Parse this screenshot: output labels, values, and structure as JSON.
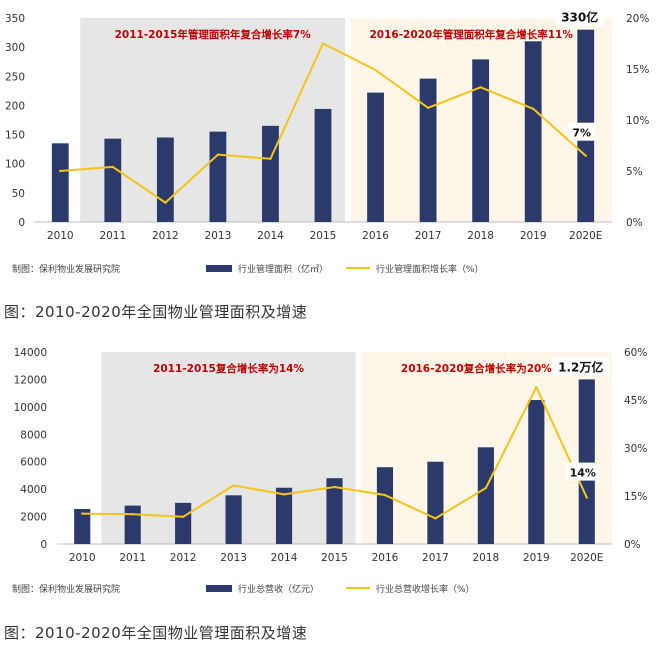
{
  "chart_data": [
    {
      "type": "bar",
      "categories": [
        "2010",
        "2011",
        "2012",
        "2013",
        "2014",
        "2015",
        "2016",
        "2017",
        "2018",
        "2019",
        "2020E"
      ],
      "series": [
        {
          "name": "行业管理面积（亿㎡）",
          "axis": "left",
          "type": "bar",
          "values": [
            135,
            143,
            145,
            155,
            165,
            194,
            222,
            246,
            279,
            310,
            330
          ]
        },
        {
          "name": "行业管理面积增长率（%）",
          "axis": "right",
          "type": "line",
          "values": [
            5.0,
            5.4,
            1.9,
            6.6,
            6.2,
            17.5,
            14.9,
            11.2,
            13.2,
            11.1,
            6.5
          ]
        }
      ],
      "y_left": {
        "ylim": [
          0,
          350
        ],
        "ticks": [
          "0",
          "50",
          "100",
          "150",
          "200",
          "250",
          "300",
          "350"
        ]
      },
      "y_right": {
        "ylim": [
          0,
          20
        ],
        "ticks": [
          "0%",
          "5%",
          "10%",
          "15%",
          "20%"
        ]
      },
      "shaded_regions": [
        {
          "from": "2011",
          "to": "2015",
          "color": "#e6e6e6",
          "label": "2011-2015年管理面积年复合增长率7%"
        },
        {
          "from": "2016",
          "to": "2020E",
          "color": "#fdf6e9",
          "label": "2016-2020年管理面积年复合增长率11%"
        }
      ],
      "annotations": {
        "bar_label": "330亿",
        "line_label": "7%"
      },
      "source": "制图：保利物业发展研究院",
      "caption": "图：2010-2020年全国物业管理面积及增速"
    },
    {
      "type": "bar",
      "categories": [
        "2010",
        "2011",
        "2012",
        "2013",
        "2014",
        "2015",
        "2016",
        "2017",
        "2018",
        "2019",
        "2020E"
      ],
      "series": [
        {
          "name": "行业总营收（亿元）",
          "axis": "left",
          "type": "bar",
          "values": [
            2550,
            2800,
            3000,
            3550,
            4100,
            4800,
            5600,
            6000,
            7050,
            10500,
            12000
          ]
        },
        {
          "name": "行业总营收增长率（%）",
          "axis": "right",
          "type": "line",
          "values": [
            9.5,
            9.3,
            8.5,
            18.3,
            15.5,
            17.8,
            15.3,
            8.0,
            17.5,
            49.0,
            14.5
          ]
        }
      ],
      "y_left": {
        "ylim": [
          0,
          14000
        ],
        "ticks": [
          "0",
          "2000",
          "4000",
          "6000",
          "8000",
          "10000",
          "12000",
          "14000"
        ]
      },
      "y_right": {
        "ylim": [
          0,
          60
        ],
        "ticks": [
          "0%",
          "15%",
          "30%",
          "45%",
          "60%"
        ]
      },
      "shaded_regions": [
        {
          "from": "2011",
          "to": "2015",
          "color": "#e6e6e6",
          "label": "2011-2015复合增长率为14%"
        },
        {
          "from": "2016",
          "to": "2020E",
          "color": "#fdf6e9",
          "label": "2016-2020复合增长率为20%"
        }
      ],
      "annotations": {
        "bar_label": "1.2万亿",
        "line_label": "14%"
      },
      "source": "制图：保利物业发展研究院",
      "caption": "图：2010-2020年全国物业管理面积及增速"
    }
  ],
  "colors": {
    "bar": "#2c3a6b",
    "line": "#f5c518",
    "region_label": "#c00000",
    "axis_text": "#333333"
  }
}
